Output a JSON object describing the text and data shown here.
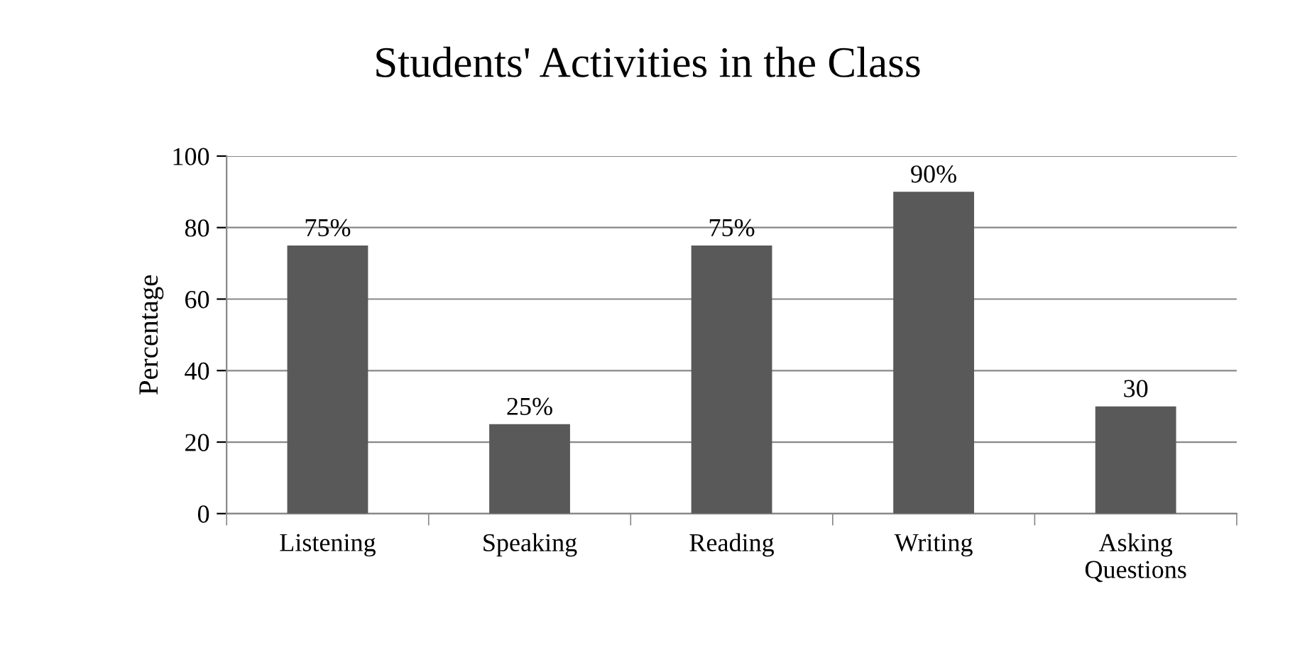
{
  "chart_data": {
    "type": "bar",
    "title": "Students' Activities in the Class",
    "ylabel": "Percentage",
    "categories": [
      "Listening",
      "Speaking",
      "Reading",
      "Writing",
      "Asking\nQuestions"
    ],
    "values": [
      75,
      25,
      75,
      90,
      30
    ],
    "color": "#595959",
    "value_labels": [
      "75%",
      "25%",
      "75%",
      "90%",
      "30"
    ],
    "ylim": [
      0,
      100
    ],
    "yticks": [
      0,
      20,
      40,
      60,
      80,
      100
    ],
    "grid": "y",
    "legend": false
  }
}
